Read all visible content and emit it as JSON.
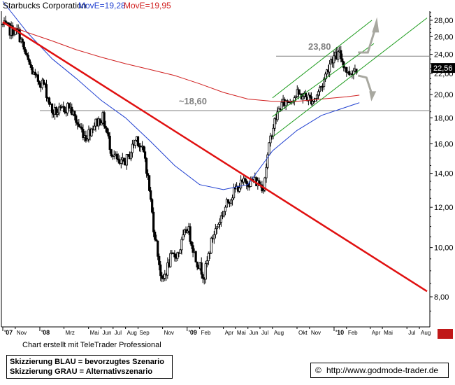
{
  "header": {
    "title": "Starbucks Corporation",
    "ma1": "MovE=19,28",
    "ma2": "MovE=19,95"
  },
  "footer": {
    "credit": "Chart erstellt mit TeleTrader Professional",
    "legend_line1": "Skizzierung BLAU = bevorzugtes Szenario",
    "legend_line2": "Skizzierung GRAU = Alternativszenario",
    "copyright": "©",
    "url": "http://www.godmode-trader.de"
  },
  "colors": {
    "price": "#000000",
    "ma_short": "#1f3fd0",
    "ma_long": "#d01f1f",
    "trendline": "#e01010",
    "channel": "#1a9a1a",
    "horizontal": "#808080",
    "arrows": "#a8a8a0",
    "label_box": "#000000"
  },
  "chart_data": {
    "type": "line",
    "title": "Starbucks Corporation",
    "xlabel": "",
    "ylabel": "",
    "ylim": [
      7,
      29.5
    ],
    "y_scale": "log",
    "grid": false,
    "y_ticks": [
      8,
      10,
      12,
      14,
      16,
      18,
      20,
      22,
      24,
      26,
      28
    ],
    "y_tick_labels": [
      "8,00",
      "10,00",
      "12,00",
      "14,00",
      "16,00",
      "18,00",
      "20,00",
      "22,00",
      "24,00",
      "26,00",
      "28,00"
    ],
    "last_price_label": "22,56",
    "last_price": 22.56,
    "x_ticks": [
      {
        "label": "'07",
        "date": "2007-10-01"
      },
      {
        "label": "Nov",
        "date": "2007-11-01"
      },
      {
        "label": "'08",
        "date": "2008-01-01"
      },
      {
        "label": "Mrz",
        "date": "2008-03-01"
      },
      {
        "label": "Mai",
        "date": "2008-05-01"
      },
      {
        "label": "Jun",
        "date": "2008-06-01"
      },
      {
        "label": "Jul",
        "date": "2008-07-01"
      },
      {
        "label": "Aug",
        "date": "2008-08-01"
      },
      {
        "label": "Sep",
        "date": "2008-09-01"
      },
      {
        "label": "Nov",
        "date": "2008-11-01"
      },
      {
        "label": "'09",
        "date": "2009-01-01"
      },
      {
        "label": "Feb",
        "date": "2009-02-01"
      },
      {
        "label": "Apr",
        "date": "2009-04-01"
      },
      {
        "label": "Mai",
        "date": "2009-05-01"
      },
      {
        "label": "Jun",
        "date": "2009-06-01"
      },
      {
        "label": "Jul",
        "date": "2009-07-01"
      },
      {
        "label": "Aug",
        "date": "2009-08-01"
      },
      {
        "label": "Okt",
        "date": "2009-10-01"
      },
      {
        "label": "Nov",
        "date": "2009-11-01"
      },
      {
        "label": "'10",
        "date": "2010-01-01"
      },
      {
        "label": "Feb",
        "date": "2010-02-01"
      },
      {
        "label": "Apr",
        "date": "2010-04-01"
      },
      {
        "label": "Mai",
        "date": "2010-05-01"
      },
      {
        "label": "Jul",
        "date": "2010-07-01"
      },
      {
        "label": "Aug",
        "date": "2010-08-01"
      }
    ],
    "series": [
      {
        "name": "Starbucks Corporation",
        "dates": [
          "2007-10-01",
          "2007-10-22",
          "2007-11-12",
          "2007-12-03",
          "2007-12-24",
          "2008-01-14",
          "2008-02-04",
          "2008-02-25",
          "2008-03-17",
          "2008-04-07",
          "2008-04-28",
          "2008-05-19",
          "2008-06-09",
          "2008-06-30",
          "2008-07-21",
          "2008-08-11",
          "2008-09-01",
          "2008-09-22",
          "2008-10-13",
          "2008-11-03",
          "2008-11-24",
          "2008-12-15",
          "2009-01-05",
          "2009-01-26",
          "2009-02-16",
          "2009-03-09",
          "2009-03-30",
          "2009-04-20",
          "2009-05-11",
          "2009-06-01",
          "2009-06-22",
          "2009-07-13",
          "2009-08-03",
          "2009-08-24",
          "2009-09-14",
          "2009-10-05",
          "2009-10-26",
          "2009-11-16",
          "2009-12-07",
          "2009-12-28",
          "2010-01-18",
          "2010-02-08",
          "2010-03-01"
        ],
        "values": [
          27.5,
          26.8,
          26.5,
          23.5,
          21.5,
          21.0,
          18.5,
          18.5,
          19.0,
          17.5,
          16.5,
          17.5,
          18.0,
          15.5,
          14.5,
          15.0,
          16.5,
          15.0,
          11.0,
          8.5,
          9.5,
          9.8,
          11.0,
          9.5,
          8.8,
          10.5,
          11.5,
          12.5,
          13.2,
          13.5,
          13.5,
          13.2,
          17.0,
          19.0,
          19.5,
          20.0,
          19.8,
          19.5,
          21.0,
          23.5,
          24.0,
          22.0,
          22.56
        ]
      },
      {
        "name": "MovE=19,28",
        "dates": [
          "2007-10-01",
          "2007-12-01",
          "2008-02-01",
          "2008-04-01",
          "2008-06-01",
          "2008-08-01",
          "2008-10-01",
          "2008-12-01",
          "2009-02-01",
          "2009-04-01",
          "2009-06-01",
          "2009-08-01",
          "2009-10-01",
          "2009-12-01",
          "2010-02-01",
          "2010-03-05"
        ],
        "values": [
          30.5,
          26.5,
          23.5,
          21.5,
          19.5,
          18.0,
          16.2,
          14.5,
          13.3,
          13.0,
          13.3,
          15.5,
          17.0,
          18.2,
          18.9,
          19.28
        ]
      },
      {
        "name": "MovE=19,95",
        "dates": [
          "2007-10-01",
          "2007-12-01",
          "2008-02-01",
          "2008-04-01",
          "2008-06-01",
          "2008-08-01",
          "2008-10-01",
          "2008-12-01",
          "2009-02-01",
          "2009-04-01",
          "2009-06-01",
          "2009-08-01",
          "2009-10-01",
          "2009-12-01",
          "2010-02-01",
          "2010-03-05"
        ],
        "values": [
          27.6,
          26.5,
          25.5,
          24.5,
          23.7,
          23.0,
          22.4,
          21.8,
          21.0,
          20.2,
          19.6,
          19.4,
          19.4,
          19.6,
          19.8,
          19.95
        ]
      }
    ],
    "annotations": [
      {
        "type": "hline",
        "value": 23.8,
        "label": "23,80"
      },
      {
        "type": "hline",
        "value": 18.6,
        "label": "~18,60"
      },
      {
        "type": "trendline",
        "from": {
          "date": "2007-10-01",
          "value": 27.8
        },
        "to": {
          "date": "2010-08-20",
          "value": 8.2
        }
      },
      {
        "type": "channel",
        "lines": [
          {
            "from": {
              "date": "2009-08-01",
              "value": 19.7
            },
            "to": {
              "date": "2010-04-05",
              "value": 28.0
            }
          },
          {
            "from": {
              "date": "2009-08-01",
              "value": 16.5
            },
            "to": {
              "date": "2010-08-20",
              "value": 28.3
            }
          }
        ]
      }
    ]
  }
}
